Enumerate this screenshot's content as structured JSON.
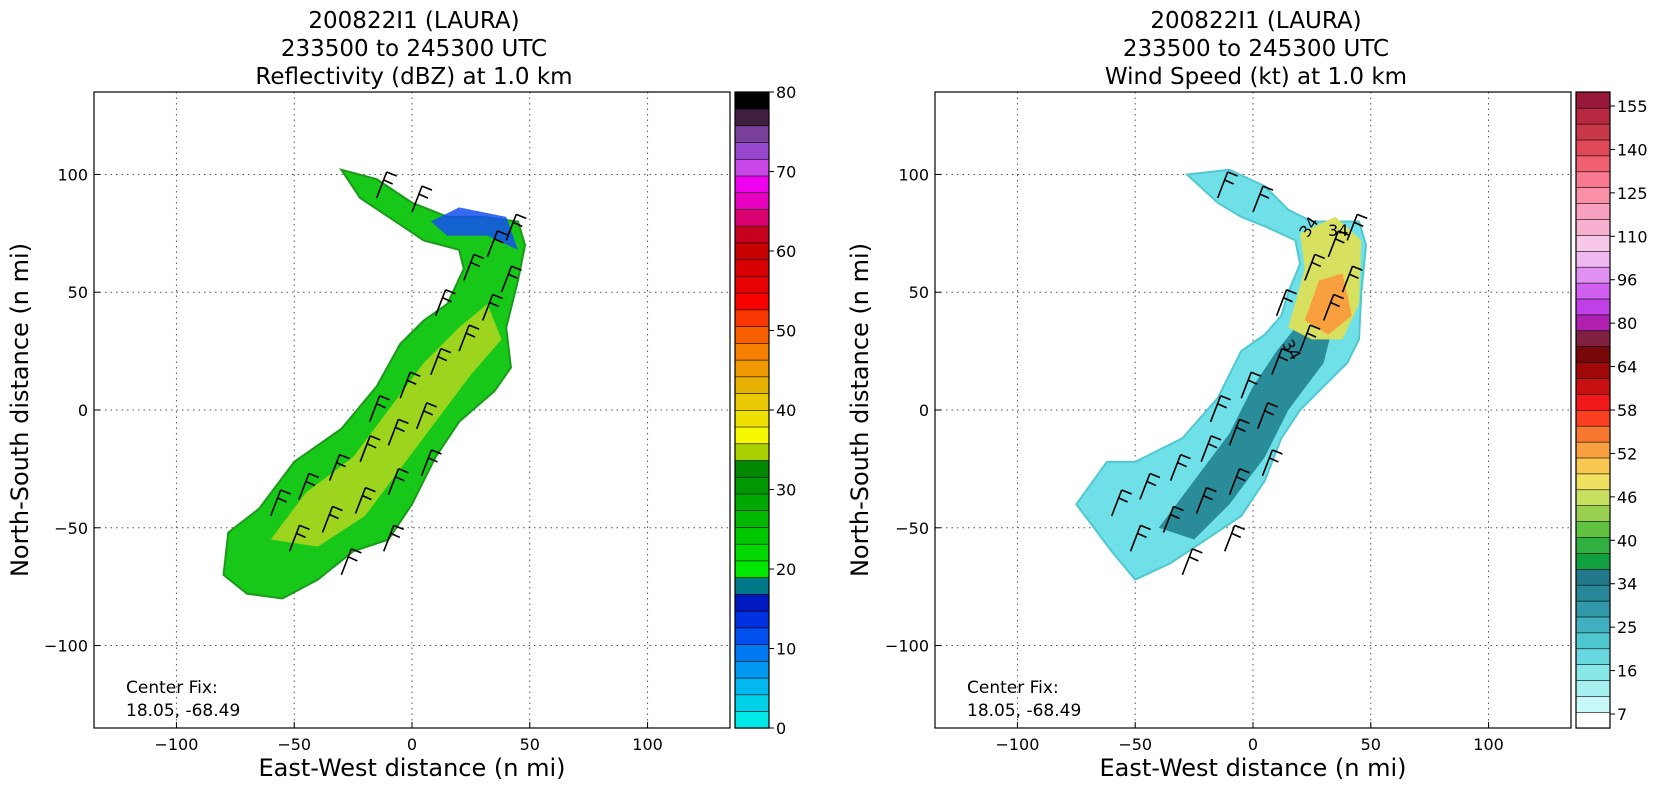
{
  "panels": [
    {
      "id": "reflectivity",
      "title_lines": [
        "200822I1 (LAURA)",
        "233500 to 245300 UTC",
        "Reflectivity (dBZ) at 1.0 km"
      ],
      "xlabel": "East-West distance (n mi)",
      "ylabel": "North-South distance (n mi)",
      "center_fix_label": "Center Fix:",
      "center_fix_value": "18.05, -68.49",
      "colorbar": {
        "ticks": [
          "0",
          "10",
          "20",
          "30",
          "40",
          "50",
          "60",
          "70",
          "80"
        ],
        "colors": [
          "#00e8e8",
          "#00d0e8",
          "#00b8f0",
          "#0098f0",
          "#0078f0",
          "#0050f0",
          "#0030e0",
          "#0018c0",
          "#007888",
          "#00e800",
          "#00d800",
          "#00c800",
          "#00b800",
          "#00a800",
          "#009800",
          "#008800",
          "#a8d000",
          "#f8f800",
          "#f0e000",
          "#e8c800",
          "#e8b000",
          "#f09800",
          "#f88000",
          "#f86000",
          "#f83800",
          "#f80000",
          "#e80000",
          "#d80000",
          "#c80000",
          "#c80020",
          "#d80070",
          "#e800c0",
          "#f000f0",
          "#c848e8",
          "#9848d0",
          "#784098",
          "#402040",
          "#000000"
        ]
      }
    },
    {
      "id": "windspeed",
      "title_lines": [
        "200822I1 (LAURA)",
        "233500 to 245300 UTC",
        "Wind Speed (kt) at 1.0 km"
      ],
      "xlabel": "East-West distance (n mi)",
      "ylabel": "North-South distance (n mi)",
      "center_fix_label": "Center Fix:",
      "center_fix_value": "18.05, -68.49",
      "contour_labels": [
        "34",
        "34",
        "34"
      ],
      "colorbar": {
        "ticks": [
          "7",
          "16",
          "25",
          "34",
          "40",
          "46",
          "52",
          "58",
          "64",
          "80",
          "96",
          "110",
          "125",
          "140",
          "155"
        ],
        "colors": [
          "#ffffff",
          "#c8f8f8",
          "#a8f0f0",
          "#88e8e8",
          "#68d8e0",
          "#50c8d0",
          "#40b0c0",
          "#3098a8",
          "#288898",
          "#207888",
          "#10a040",
          "#30b040",
          "#60c040",
          "#98d050",
          "#c8e060",
          "#f0e060",
          "#f8c850",
          "#f8a040",
          "#f87830",
          "#f84020",
          "#f01818",
          "#c81010",
          "#a00808",
          "#780808",
          "#802040",
          "#b020b0",
          "#c040e8",
          "#d060f0",
          "#e090f0",
          "#f0b8f0",
          "#f8c8e8",
          "#f8b0d0",
          "#f8a0c0",
          "#f890a8",
          "#f87890",
          "#f06070",
          "#e04858",
          "#c83848",
          "#b82840",
          "#981838"
        ]
      }
    }
  ],
  "chart_data": [
    {
      "type": "heatmap",
      "title": "200822I1 (LAURA) 233500 to 245300 UTC Reflectivity (dBZ) at 1.0 km",
      "xlabel": "East-West distance (n mi)",
      "ylabel": "North-South distance (n mi)",
      "xlim": [
        -135,
        135
      ],
      "ylim": [
        -135,
        135
      ],
      "xticks": [
        -100,
        -50,
        0,
        50,
        100
      ],
      "yticks": [
        -100,
        -50,
        0,
        50,
        100
      ],
      "grid": true,
      "colorbar_range": [
        0,
        80
      ],
      "colorbar_ticks": [
        0,
        10,
        20,
        30,
        40,
        50,
        60,
        70,
        80
      ],
      "center_fix": [
        18.05,
        -68.49
      ],
      "echo_region_outline": [
        [
          -80,
          -70
        ],
        [
          -78,
          -52
        ],
        [
          -65,
          -42
        ],
        [
          -50,
          -22
        ],
        [
          -30,
          -8
        ],
        [
          -15,
          10
        ],
        [
          -5,
          28
        ],
        [
          5,
          38
        ],
        [
          15,
          45
        ],
        [
          22,
          60
        ],
        [
          20,
          68
        ],
        [
          5,
          72
        ],
        [
          -10,
          82
        ],
        [
          -22,
          90
        ],
        [
          -30,
          102
        ],
        [
          -15,
          98
        ],
        [
          0,
          88
        ],
        [
          15,
          82
        ],
        [
          30,
          82
        ],
        [
          45,
          80
        ],
        [
          48,
          70
        ],
        [
          45,
          55
        ],
        [
          40,
          35
        ],
        [
          42,
          18
        ],
        [
          35,
          8
        ],
        [
          20,
          -5
        ],
        [
          10,
          -20
        ],
        [
          0,
          -40
        ],
        [
          -10,
          -55
        ],
        [
          -25,
          -60
        ],
        [
          -40,
          -72
        ],
        [
          -55,
          -80
        ],
        [
          -70,
          -78
        ]
      ],
      "wind_barbs": true
    },
    {
      "type": "heatmap",
      "title": "200822I1 (LAURA) 233500 to 245300 UTC Wind Speed (kt) at 1.0 km",
      "xlabel": "East-West distance (n mi)",
      "ylabel": "North-South distance (n mi)",
      "xlim": [
        -135,
        135
      ],
      "ylim": [
        -135,
        135
      ],
      "xticks": [
        -100,
        -50,
        0,
        50,
        100
      ],
      "yticks": [
        -100,
        -50,
        0,
        50,
        100
      ],
      "grid": true,
      "colorbar_ticks": [
        7,
        16,
        25,
        34,
        40,
        46,
        52,
        58,
        64,
        80,
        96,
        110,
        125,
        140,
        155
      ],
      "center_fix": [
        18.05,
        -68.49
      ],
      "contour_levels": [
        34
      ],
      "echo_region_outline": [
        [
          -75,
          -40
        ],
        [
          -62,
          -22
        ],
        [
          -50,
          -22
        ],
        [
          -30,
          -12
        ],
        [
          -15,
          5
        ],
        [
          -5,
          25
        ],
        [
          5,
          32
        ],
        [
          12,
          40
        ],
        [
          15,
          50
        ],
        [
          20,
          62
        ],
        [
          18,
          72
        ],
        [
          5,
          78
        ],
        [
          -5,
          82
        ],
        [
          -15,
          88
        ],
        [
          -28,
          100
        ],
        [
          -10,
          102
        ],
        [
          5,
          95
        ],
        [
          15,
          85
        ],
        [
          25,
          80
        ],
        [
          45,
          80
        ],
        [
          48,
          70
        ],
        [
          46,
          50
        ],
        [
          45,
          30
        ],
        [
          40,
          20
        ],
        [
          30,
          10
        ],
        [
          20,
          0
        ],
        [
          12,
          -12
        ],
        [
          5,
          -30
        ],
        [
          -5,
          -45
        ],
        [
          -20,
          -55
        ],
        [
          -35,
          -65
        ],
        [
          -50,
          -72
        ],
        [
          -60,
          -60
        ]
      ],
      "wind_barbs": true
    }
  ]
}
